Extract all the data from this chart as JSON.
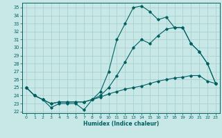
{
  "xlabel": "Humidex (Indice chaleur)",
  "bg_color": "#c8e8e8",
  "line_color": "#006060",
  "grid_color": "#a8d0d0",
  "xlim": [
    -0.5,
    23.5
  ],
  "ylim": [
    21.8,
    35.6
  ],
  "xticks": [
    0,
    1,
    2,
    3,
    4,
    5,
    6,
    7,
    8,
    9,
    10,
    11,
    12,
    13,
    14,
    15,
    16,
    17,
    18,
    19,
    20,
    21,
    22,
    23
  ],
  "yticks": [
    22,
    23,
    24,
    25,
    26,
    27,
    28,
    29,
    30,
    31,
    32,
    33,
    34,
    35
  ],
  "series1_x": [
    0,
    1,
    2,
    3,
    4,
    5,
    6,
    7,
    8,
    9,
    10,
    11,
    12,
    13,
    14,
    15,
    16,
    17,
    18,
    19,
    20,
    21,
    22,
    23
  ],
  "series1_y": [
    25.0,
    24.0,
    23.5,
    22.5,
    23.0,
    23.0,
    23.0,
    22.2,
    23.5,
    24.5,
    27.0,
    31.0,
    33.0,
    35.0,
    35.2,
    34.5,
    33.5,
    33.8,
    32.5,
    32.5,
    30.5,
    29.5,
    28.0,
    25.5
  ],
  "series2_x": [
    0,
    1,
    2,
    3,
    4,
    5,
    6,
    7,
    8,
    9,
    10,
    11,
    12,
    13,
    14,
    15,
    16,
    17,
    18,
    19,
    20,
    21,
    22,
    23
  ],
  "series2_y": [
    25.0,
    24.0,
    23.5,
    23.0,
    23.2,
    23.2,
    23.2,
    23.2,
    23.5,
    24.0,
    25.0,
    26.5,
    28.2,
    30.0,
    31.0,
    30.5,
    31.5,
    32.3,
    32.5,
    32.5,
    30.5,
    29.5,
    28.0,
    25.5
  ],
  "series3_x": [
    0,
    1,
    2,
    3,
    4,
    5,
    6,
    7,
    8,
    9,
    10,
    11,
    12,
    13,
    14,
    15,
    16,
    17,
    18,
    19,
    20,
    21,
    22,
    23
  ],
  "series3_y": [
    25.0,
    24.0,
    23.5,
    23.0,
    23.2,
    23.2,
    23.2,
    23.2,
    23.5,
    23.8,
    24.2,
    24.5,
    24.8,
    25.0,
    25.2,
    25.5,
    25.8,
    26.0,
    26.2,
    26.3,
    26.5,
    26.5,
    25.8,
    25.5
  ]
}
